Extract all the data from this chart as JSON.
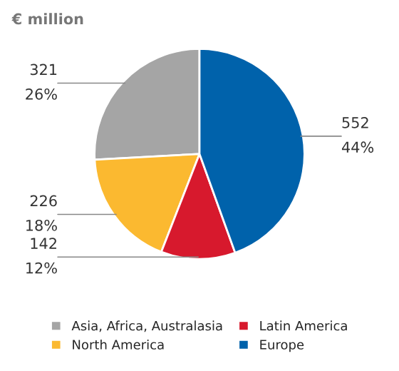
{
  "chart_data": {
    "type": "pie",
    "title": "€ million",
    "categories": [
      "Asia, Africa, Australasia",
      "North America",
      "Latin America",
      "Europe"
    ],
    "values": [
      321,
      226,
      142,
      552
    ],
    "value_labels": [
      "321\n26%",
      "226\n18%",
      "142\n12%",
      "552\n44%"
    ],
    "colors": [
      "#a5a5a5",
      "#fbb930",
      "#d7192d",
      "#0062ab"
    ],
    "legend": "bottom"
  }
}
